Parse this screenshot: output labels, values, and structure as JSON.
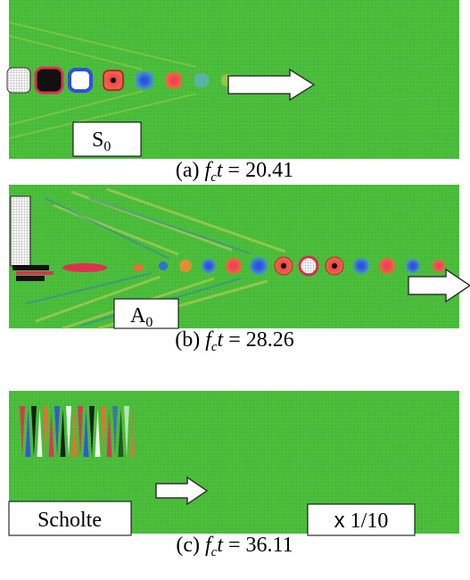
{
  "panels": [
    {
      "label": {
        "text": "S",
        "subscript": "0"
      },
      "caption": {
        "prefix": "(a)",
        "symbol": "f",
        "subscript": "c",
        "variable": "t",
        "equals": "=",
        "value": "20.41"
      }
    },
    {
      "label": {
        "text": "A",
        "subscript": "0"
      },
      "caption": {
        "prefix": "(b)",
        "symbol": "f",
        "subscript": "c",
        "variable": "t",
        "equals": "=",
        "value": "28.26"
      }
    },
    {
      "label": {
        "text": "Scholte"
      },
      "scale": {
        "symbol": "x",
        "value": "1/10"
      },
      "caption": {
        "prefix": "(c)",
        "symbol": "f",
        "subscript": "c",
        "variable": "t",
        "equals": "=",
        "value": "36.11"
      }
    }
  ]
}
